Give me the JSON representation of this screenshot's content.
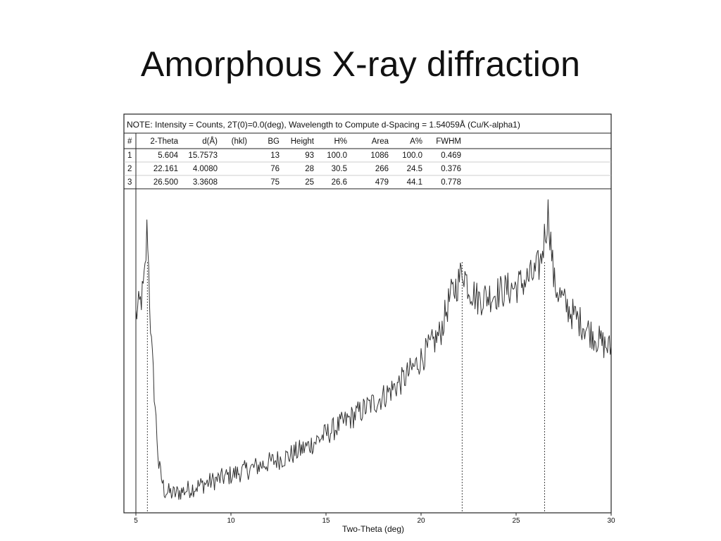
{
  "slide": {
    "title": "Amorphous X-ray diffraction"
  },
  "figure": {
    "note": "NOTE: Intensity = Counts, 2T(0)=0.0(deg), Wavelength to Compute d-Spacing = 1.54059Å (Cu/K-alpha1)",
    "table": {
      "headers": [
        "#",
        "2-Theta",
        "d(Å)",
        "(hkl)",
        "BG",
        "Height",
        "H%",
        "Area",
        "A%",
        "FWHM"
      ],
      "rows": [
        [
          "1",
          "5.604",
          "15.7573",
          "",
          "13",
          "93",
          "100.0",
          "1086",
          "100.0",
          "0.469"
        ],
        [
          "2",
          "22.161",
          "4.0080",
          "",
          "76",
          "28",
          "30.5",
          "266",
          "24.5",
          "0.376"
        ],
        [
          "3",
          "26.500",
          "3.3608",
          "",
          "75",
          "25",
          "26.6",
          "479",
          "44.1",
          "0.778"
        ]
      ]
    }
  },
  "chart_data": {
    "type": "line",
    "xlabel": "Two-Theta (deg)",
    "ylabel": "",
    "xlim": [
      5,
      30
    ],
    "ylim": [
      0,
      100
    ],
    "xticks": [
      5,
      10,
      15,
      20,
      25,
      30
    ],
    "grid": false,
    "legend": "none",
    "line_color": "#333333",
    "peak_markers": [
      5.604,
      22.161,
      26.5
    ],
    "profile": {
      "x": [
        5.0,
        5.2,
        5.4,
        5.5,
        5.6,
        5.7,
        5.8,
        6.0,
        6.2,
        6.5,
        7.0,
        8.0,
        9.0,
        10.0,
        11.0,
        12.0,
        13.0,
        14.0,
        15.0,
        16.0,
        17.0,
        18.0,
        19.0,
        20.0,
        20.5,
        21.0,
        21.5,
        22.0,
        22.2,
        22.5,
        23.0,
        24.0,
        25.0,
        25.5,
        26.0,
        26.3,
        26.5,
        26.7,
        27.0,
        27.5,
        28.0,
        29.0,
        29.5,
        30.0
      ],
      "y": [
        63,
        66,
        71,
        78,
        93,
        72,
        55,
        35,
        15,
        7,
        6,
        8,
        10,
        12,
        14,
        16,
        18,
        21,
        25,
        29,
        33,
        37,
        42,
        49,
        53,
        57,
        68,
        74,
        78,
        72,
        68,
        70,
        72,
        74,
        76,
        80,
        88,
        96,
        73,
        67,
        63,
        57,
        54,
        52
      ]
    },
    "noise_amplitude": 5
  }
}
